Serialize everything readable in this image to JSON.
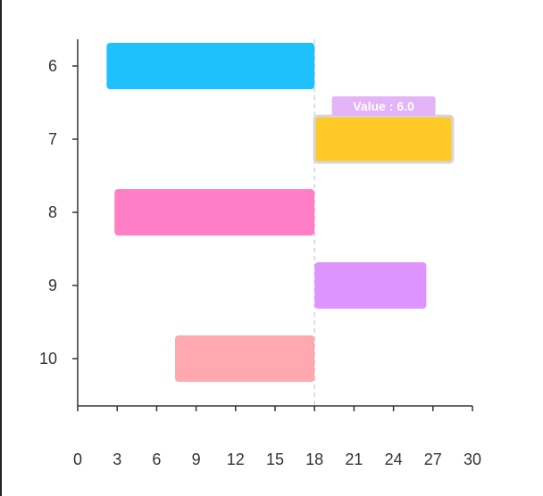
{
  "chart_data": {
    "type": "bar",
    "orientation": "horizontal",
    "floating": true,
    "categories": [
      "6",
      "7",
      "8",
      "9",
      "10"
    ],
    "series": [
      {
        "ranges": [
          [
            2.2,
            18
          ],
          [
            18,
            28.5
          ],
          [
            2.8,
            18
          ],
          [
            18,
            26.5
          ],
          [
            7.4,
            18
          ]
        ],
        "colors": [
          "#1ec1fb",
          "#ffca28",
          "#ff7ec6",
          "#dd95fd",
          "#ffa8b0"
        ]
      }
    ],
    "xlim": [
      0,
      30
    ],
    "xticks": [
      0,
      3,
      6,
      9,
      12,
      15,
      18,
      21,
      24,
      27,
      30
    ],
    "reference_line": {
      "x": 18,
      "style": "dashed",
      "color": "#c9c5f5"
    },
    "highlighted_category": "7",
    "tooltip": {
      "text": "Value : 6.0",
      "color": "#e4b4f8"
    },
    "grid": false,
    "legend": "none"
  }
}
